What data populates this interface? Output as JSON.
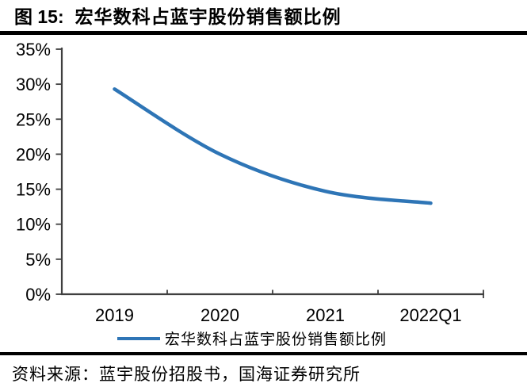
{
  "header": {
    "figure_label": "图 15:",
    "title": "宏华数科占蓝宇股份销售额比例"
  },
  "chart_data": {
    "type": "line",
    "title": "宏华数科占蓝宇股份销售额比例",
    "categories": [
      "2019",
      "2020",
      "2021",
      "2022Q1"
    ],
    "series": [
      {
        "name": "宏华数科占蓝宇股份销售额比例",
        "color": "#2E75B6",
        "values": [
          29.3,
          20.0,
          14.7,
          13.0
        ]
      }
    ],
    "ylim": [
      0,
      35
    ],
    "ytick_step": 5,
    "ytick_labels": [
      "0%",
      "5%",
      "10%",
      "15%",
      "20%",
      "25%",
      "30%",
      "35%"
    ],
    "xlabel": "",
    "ylabel": "",
    "grid": false,
    "smooth": true,
    "legend_position": "bottom"
  },
  "footer": {
    "source": "资料来源：蓝宇股份招股书，国海证券研究所"
  }
}
